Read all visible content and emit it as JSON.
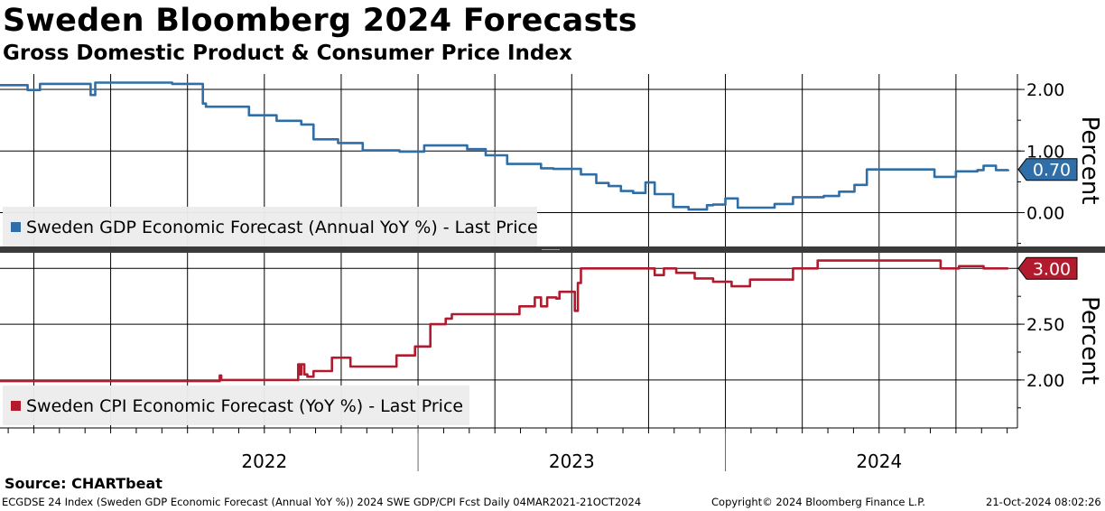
{
  "title": "Sweden Bloomberg 2024 Forecasts",
  "subtitle": "Gross Domestic Product & Consumer Price Index",
  "colors": {
    "gdp": "#2f6ea6",
    "cpi": "#b21b2e",
    "grid": "#000000",
    "divider": "#3a3a3a"
  },
  "footer": {
    "source": "Source:  CHARTbeat",
    "left": "ECGDSE 24 Index (Sweden GDP Economic Forecast (Annual YoY %)) 2024 SWE GDP/CPI Fcst  Daily 04MAR2021-21OCT2024",
    "middle": "Copyright© 2024 Bloomberg Finance L.P.",
    "right": "21-Oct-2024 08:02:26"
  },
  "chart_data": [
    {
      "type": "line",
      "name": "gdp",
      "ylabel": "Percent",
      "ylim": [
        -0.55,
        2.25
      ],
      "yticks": [
        0.0,
        1.0,
        2.0
      ],
      "ytick_labels": [
        "0.00",
        "1.00",
        "2.00"
      ],
      "xlim": [
        2021.64,
        2024.95
      ],
      "last_value_label": "0.70",
      "last_value": 0.7,
      "series": [
        {
          "name": "Sweden GDP Economic Forecast (Annual YoY %) - Last Price",
          "legend": "Sweden GDP Economic Forecast (Annual YoY %) - Last Price",
          "x": [
            2021.64,
            2021.72,
            2021.73,
            2021.76,
            2021.77,
            2021.93,
            2021.935,
            2021.945,
            2021.95,
            2022.12,
            2022.2,
            2022.26,
            2022.3,
            2022.31,
            2022.45,
            2022.54,
            2022.62,
            2022.66,
            2022.74,
            2022.82,
            2022.94,
            2022.98,
            2023.02,
            2023.08,
            2023.16,
            2023.22,
            2023.29,
            2023.4,
            2023.44,
            2023.49,
            2023.53,
            2023.58,
            2023.62,
            2023.66,
            2023.7,
            2023.74,
            2023.77,
            2023.83,
            2023.88,
            2023.9,
            2023.94,
            2023.96,
            2024.0,
            2024.04,
            2024.09,
            2024.16,
            2024.22,
            2024.28,
            2024.32,
            2024.37,
            2024.42,
            2024.46,
            2024.53,
            2024.58,
            2024.68,
            2024.75,
            2024.82,
            2024.84,
            2024.88,
            2024.92
          ],
          "y": [
            2.07,
            2.07,
            1.99,
            1.99,
            2.09,
            2.09,
            1.91,
            1.91,
            2.11,
            2.11,
            2.09,
            2.09,
            1.77,
            1.72,
            1.58,
            1.49,
            1.43,
            1.19,
            1.13,
            1.01,
            0.99,
            0.99,
            1.09,
            1.09,
            1.03,
            0.93,
            0.79,
            0.72,
            0.71,
            0.71,
            0.62,
            0.48,
            0.43,
            0.35,
            0.32,
            0.49,
            0.3,
            0.09,
            0.05,
            0.05,
            0.12,
            0.13,
            0.23,
            0.08,
            0.08,
            0.14,
            0.25,
            0.25,
            0.27,
            0.34,
            0.45,
            0.7,
            0.7,
            0.7,
            0.58,
            0.67,
            0.69,
            0.76,
            0.69,
            0.7
          ]
        }
      ]
    },
    {
      "type": "line",
      "name": "cpi",
      "ylabel": "Percent",
      "ylim": [
        1.57,
        3.14
      ],
      "yticks": [
        2.0,
        2.5,
        3.0
      ],
      "ytick_labels": [
        "2.00",
        "2.50",
        "3.00"
      ],
      "xlim": [
        2021.64,
        2024.95
      ],
      "last_value_label": "3.00",
      "last_value": 3.0,
      "series": [
        {
          "name": "Sweden CPI Economic Forecast (YoY %) - Last Price",
          "legend": "Sweden CPI Economic Forecast (YoY %) - Last Price",
          "x": [
            2021.64,
            2022.35,
            2022.355,
            2022.36,
            2022.6,
            2022.61,
            2022.615,
            2022.62,
            2022.63,
            2022.64,
            2022.66,
            2022.72,
            2022.78,
            2022.86,
            2022.93,
            2022.99,
            2023.04,
            2023.09,
            2023.11,
            2023.29,
            2023.33,
            2023.38,
            2023.4,
            2023.42,
            2023.45,
            2023.46,
            2023.5,
            2023.51,
            2023.52,
            2023.53,
            2023.56,
            2023.62,
            2023.68,
            2023.72,
            2023.76,
            2023.77,
            2023.8,
            2023.84,
            2023.9,
            2023.96,
            2024.02,
            2024.08,
            2024.22,
            2024.3,
            2024.34,
            2024.4,
            2024.45,
            2024.48,
            2024.52,
            2024.59,
            2024.63,
            2024.68,
            2024.7,
            2024.72,
            2024.76,
            2024.84,
            2024.92
          ],
          "y": [
            1.99,
            1.99,
            2.04,
            2.0,
            2.0,
            2.14,
            2.05,
            2.14,
            2.05,
            2.03,
            2.08,
            2.2,
            2.12,
            2.12,
            2.22,
            2.3,
            2.5,
            2.55,
            2.59,
            2.59,
            2.66,
            2.74,
            2.66,
            2.74,
            2.73,
            2.79,
            2.79,
            2.62,
            2.87,
            3.0,
            3.0,
            3.0,
            3.0,
            3.0,
            3.0,
            2.94,
            3.0,
            2.96,
            2.91,
            2.88,
            2.84,
            2.9,
            3.0,
            3.07,
            3.07,
            3.07,
            3.07,
            3.07,
            3.07,
            3.07,
            3.07,
            3.07,
            3.0,
            3.0,
            3.02,
            3.0,
            3.0
          ]
        }
      ]
    }
  ],
  "x_axis": {
    "year_labels": [
      {
        "label": "2022",
        "x": 2022.5
      },
      {
        "label": "2023",
        "x": 2023.5
      },
      {
        "label": "2024",
        "x": 2024.5
      }
    ],
    "year_separators": [
      2023.0,
      2024.0
    ],
    "quarter_gridlines": [
      2021.75,
      2022.0,
      2022.25,
      2022.5,
      2022.75,
      2023.0,
      2023.25,
      2023.5,
      2023.75,
      2024.0,
      2024.25,
      2024.5,
      2024.75
    ]
  }
}
